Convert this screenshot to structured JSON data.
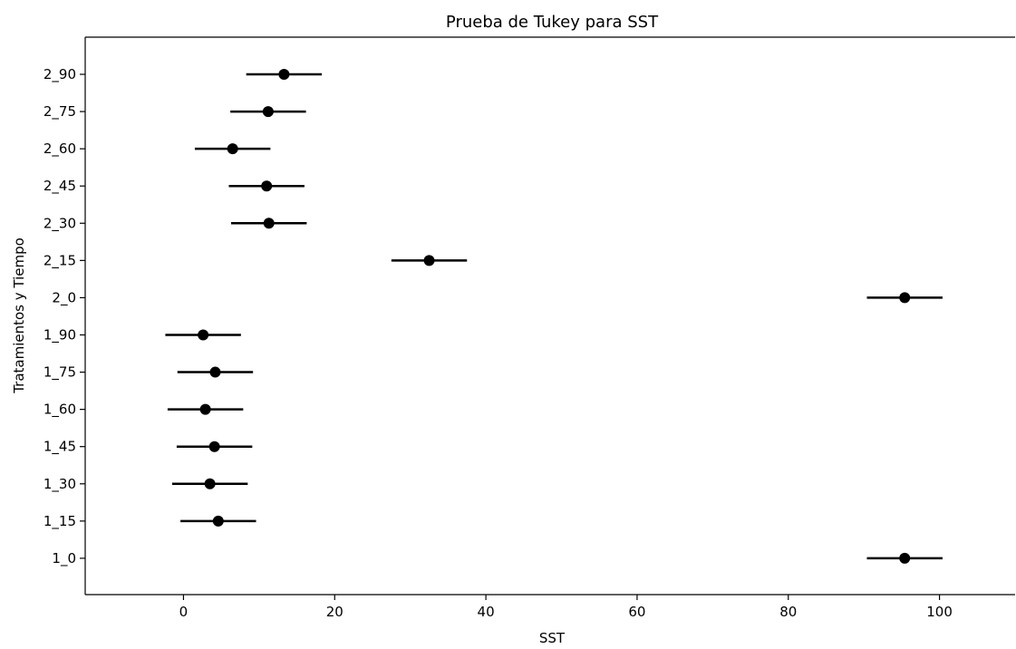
{
  "chart_data": {
    "type": "scatter",
    "subtype": "tukey-interval-plot",
    "title": "Prueba de Tukey para SST",
    "xlabel": "SST",
    "ylabel": "Tratamientos y Tiempo",
    "xlim": [
      -13,
      110
    ],
    "x_ticks": [
      0,
      20,
      40,
      60,
      80,
      100
    ],
    "grid": false,
    "categories": [
      "2_90",
      "2_75",
      "2_60",
      "2_45",
      "2_30",
      "2_15",
      "2_0",
      "1_90",
      "1_75",
      "1_60",
      "1_45",
      "1_30",
      "1_15",
      "1_0"
    ],
    "series": [
      {
        "means": [
          13.3,
          11.2,
          6.5,
          11.0,
          11.3,
          32.5,
          95.4,
          2.6,
          4.2,
          2.9,
          4.1,
          3.5,
          4.6,
          95.4
        ],
        "lower": [
          8.3,
          6.2,
          1.5,
          6.0,
          6.3,
          27.5,
          90.4,
          -2.4,
          -0.8,
          -2.1,
          -0.9,
          -1.5,
          -0.4,
          90.4
        ],
        "upper": [
          18.3,
          16.2,
          11.5,
          16.0,
          16.3,
          37.5,
          100.4,
          7.6,
          9.2,
          7.9,
          9.1,
          8.5,
          9.6,
          100.4
        ]
      }
    ],
    "marker_color": "#000000",
    "line_color": "#000000"
  }
}
